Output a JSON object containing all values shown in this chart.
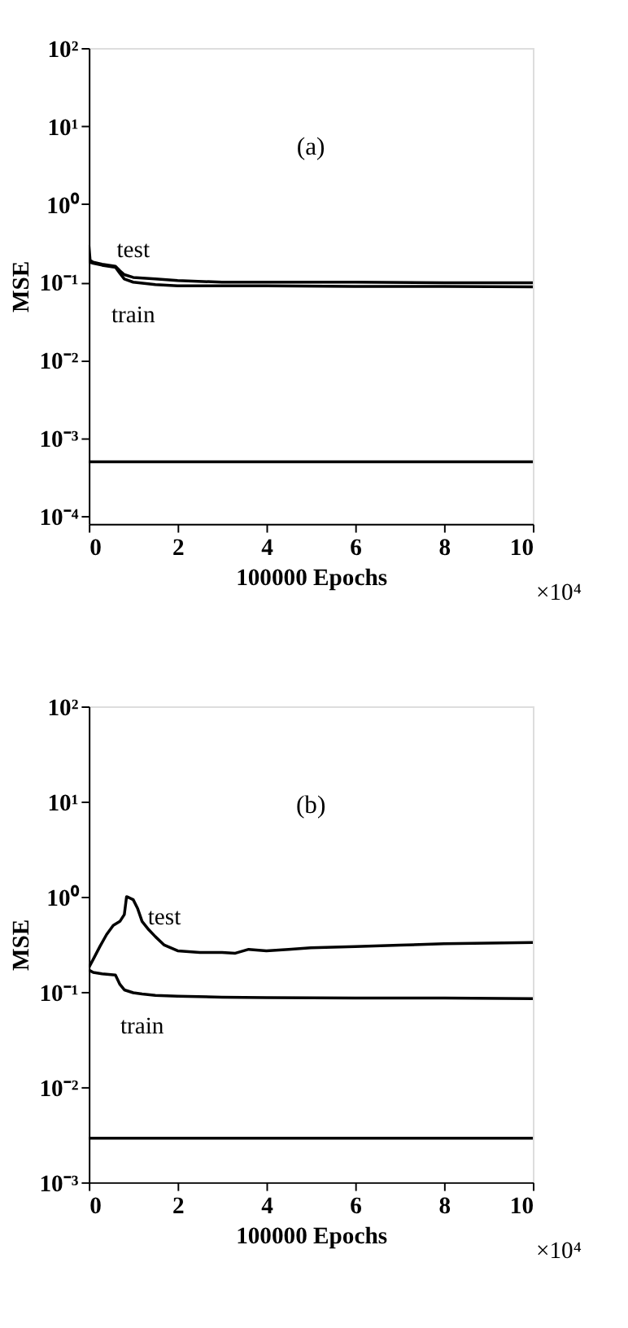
{
  "chart_data": [
    {
      "type": "line",
      "annotations": [
        "(a)",
        "×10⁴"
      ],
      "xlabel": "100000 Epochs",
      "ylabel": "MSE",
      "log": "y",
      "grid": false,
      "marker": "none",
      "line_style": "solid",
      "xlim": [
        0,
        10
      ],
      "xticks": [
        0,
        2,
        4,
        6,
        8,
        10
      ],
      "ylim": [
        8e-05,
        100
      ],
      "yticks": [
        {
          "value": 0.0001,
          "label": "10⁻⁴"
        },
        {
          "value": 0.001,
          "label": "10⁻³"
        },
        {
          "value": 0.01,
          "label": "10⁻²"
        },
        {
          "value": 0.1,
          "label": "10⁻¹"
        },
        {
          "value": 1,
          "label": "10⁰"
        },
        {
          "value": 10,
          "label": "10¹"
        },
        {
          "value": 100,
          "label": "10²"
        }
      ],
      "ref_lines": [
        {
          "axis": "y",
          "value": 0.0005,
          "color": "#000000"
        }
      ],
      "series": [
        {
          "name": "test",
          "color": "#000000",
          "x": [
            0,
            0.03,
            0.1,
            0.3,
            0.6,
            0.7,
            0.8,
            1,
            1.5,
            2,
            3,
            4,
            6,
            8,
            10
          ],
          "values": [
            0.3,
            0.19,
            0.18,
            0.17,
            0.16,
            0.14,
            0.125,
            0.115,
            0.11,
            0.105,
            0.1,
            0.1,
            0.1,
            0.098,
            0.098
          ]
        },
        {
          "name": "train",
          "color": "#000000",
          "x": [
            0,
            0.03,
            0.1,
            0.3,
            0.6,
            0.7,
            0.8,
            1,
            1.5,
            2,
            3,
            4,
            6,
            8,
            10
          ],
          "values": [
            0.2,
            0.18,
            0.175,
            0.165,
            0.155,
            0.13,
            0.11,
            0.1,
            0.093,
            0.09,
            0.09,
            0.09,
            0.088,
            0.088,
            0.087
          ]
        }
      ]
    },
    {
      "type": "line",
      "annotations": [
        "(b)",
        "×10⁴"
      ],
      "xlabel": "100000 Epochs",
      "ylabel": "MSE",
      "log": "y",
      "grid": false,
      "marker": "none",
      "line_style": "solid",
      "xlim": [
        0,
        10
      ],
      "xticks": [
        0,
        2,
        4,
        6,
        8,
        10
      ],
      "ylim": [
        0.001,
        100
      ],
      "yticks": [
        {
          "value": 0.001,
          "label": "10⁻³"
        },
        {
          "value": 0.01,
          "label": "10⁻²"
        },
        {
          "value": 0.1,
          "label": "10⁻¹"
        },
        {
          "value": 1,
          "label": "10⁰"
        },
        {
          "value": 10,
          "label": "10¹"
        },
        {
          "value": 100,
          "label": "10²"
        }
      ],
      "ref_lines": [
        {
          "axis": "y",
          "value": 0.0029,
          "color": "#000000"
        }
      ],
      "series": [
        {
          "name": "test",
          "color": "#000000",
          "x": [
            0,
            0.1,
            0.25,
            0.4,
            0.55,
            0.7,
            0.8,
            0.85,
            0.9,
            1,
            1.1,
            1.2,
            1.35,
            1.5,
            1.7,
            2,
            2.5,
            3,
            3.3,
            3.6,
            4,
            4.5,
            5,
            6,
            7,
            8,
            9,
            10
          ],
          "values": [
            0.18,
            0.22,
            0.3,
            0.4,
            0.5,
            0.55,
            0.65,
            1.0,
            0.98,
            0.93,
            0.75,
            0.55,
            0.45,
            0.38,
            0.31,
            0.27,
            0.26,
            0.26,
            0.255,
            0.28,
            0.27,
            0.28,
            0.29,
            0.3,
            0.31,
            0.32,
            0.325,
            0.33
          ]
        },
        {
          "name": "train",
          "color": "#000000",
          "x": [
            0,
            0.1,
            0.3,
            0.6,
            0.7,
            0.8,
            1,
            1.2,
            1.5,
            2,
            3,
            4,
            6,
            8,
            10
          ],
          "values": [
            0.17,
            0.16,
            0.155,
            0.15,
            0.12,
            0.105,
            0.098,
            0.095,
            0.092,
            0.09,
            0.088,
            0.087,
            0.086,
            0.086,
            0.085
          ]
        }
      ]
    }
  ]
}
